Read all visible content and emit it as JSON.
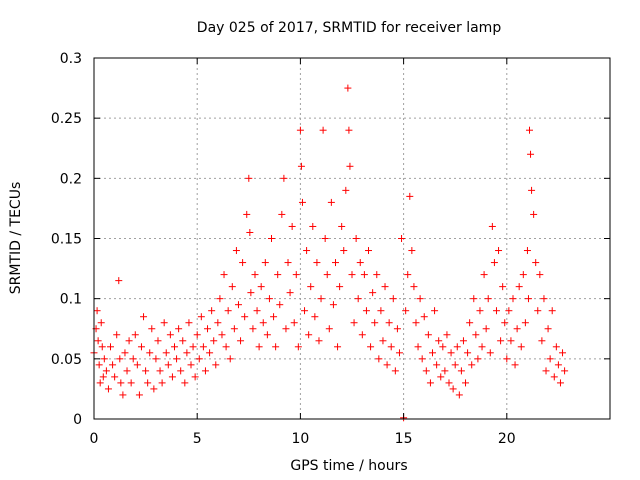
{
  "chart_data": {
    "type": "scatter",
    "title": "Day 025 of 2017, SRMTID for receiver lamp",
    "xlabel": "GPS time / hours",
    "ylabel": "SRMTID / TECUs",
    "xlim": [
      0,
      25
    ],
    "ylim": [
      0,
      0.3
    ],
    "x_ticks": [
      0,
      5,
      10,
      15,
      20
    ],
    "x_tick_labels": [
      "0",
      "5",
      "10",
      "15",
      "20"
    ],
    "y_ticks": [
      0,
      0.05,
      0.1,
      0.15,
      0.2,
      0.25,
      0.3
    ],
    "y_tick_labels": [
      "0",
      "0.05",
      "0.1",
      "0.15",
      "0.2",
      "0.25",
      "0.3"
    ],
    "grid": true,
    "marker": "+",
    "marker_color": "#ff0000",
    "series": [
      {
        "name": "SRMTID",
        "points": [
          [
            0.0,
            0.055
          ],
          [
            0.1,
            0.075
          ],
          [
            0.15,
            0.09
          ],
          [
            0.2,
            0.065
          ],
          [
            0.25,
            0.045
          ],
          [
            0.3,
            0.03
          ],
          [
            0.35,
            0.08
          ],
          [
            0.4,
            0.06
          ],
          [
            0.45,
            0.035
          ],
          [
            0.5,
            0.05
          ],
          [
            0.6,
            0.04
          ],
          [
            0.7,
            0.025
          ],
          [
            0.8,
            0.06
          ],
          [
            0.9,
            0.045
          ],
          [
            1.0,
            0.035
          ],
          [
            1.1,
            0.07
          ],
          [
            1.2,
            0.115
          ],
          [
            1.25,
            0.05
          ],
          [
            1.3,
            0.03
          ],
          [
            1.4,
            0.02
          ],
          [
            1.5,
            0.055
          ],
          [
            1.6,
            0.04
          ],
          [
            1.7,
            0.065
          ],
          [
            1.8,
            0.03
          ],
          [
            1.9,
            0.05
          ],
          [
            2.0,
            0.07
          ],
          [
            2.1,
            0.045
          ],
          [
            2.2,
            0.02
          ],
          [
            2.3,
            0.06
          ],
          [
            2.4,
            0.085
          ],
          [
            2.5,
            0.04
          ],
          [
            2.6,
            0.03
          ],
          [
            2.7,
            0.055
          ],
          [
            2.8,
            0.075
          ],
          [
            2.9,
            0.025
          ],
          [
            3.0,
            0.05
          ],
          [
            3.1,
            0.065
          ],
          [
            3.2,
            0.04
          ],
          [
            3.3,
            0.03
          ],
          [
            3.4,
            0.08
          ],
          [
            3.5,
            0.055
          ],
          [
            3.6,
            0.045
          ],
          [
            3.7,
            0.07
          ],
          [
            3.8,
            0.035
          ],
          [
            3.9,
            0.06
          ],
          [
            4.0,
            0.05
          ],
          [
            4.1,
            0.075
          ],
          [
            4.2,
            0.04
          ],
          [
            4.3,
            0.065
          ],
          [
            4.4,
            0.03
          ],
          [
            4.5,
            0.055
          ],
          [
            4.6,
            0.08
          ],
          [
            4.7,
            0.045
          ],
          [
            4.8,
            0.06
          ],
          [
            4.9,
            0.035
          ],
          [
            5.0,
            0.07
          ],
          [
            5.1,
            0.05
          ],
          [
            5.2,
            0.085
          ],
          [
            5.3,
            0.06
          ],
          [
            5.4,
            0.04
          ],
          [
            5.5,
            0.075
          ],
          [
            5.6,
            0.055
          ],
          [
            5.7,
            0.09
          ],
          [
            5.8,
            0.065
          ],
          [
            5.9,
            0.045
          ],
          [
            6.0,
            0.08
          ],
          [
            6.1,
            0.1
          ],
          [
            6.2,
            0.07
          ],
          [
            6.3,
            0.12
          ],
          [
            6.4,
            0.06
          ],
          [
            6.5,
            0.09
          ],
          [
            6.6,
            0.05
          ],
          [
            6.7,
            0.11
          ],
          [
            6.8,
            0.075
          ],
          [
            6.9,
            0.14
          ],
          [
            7.0,
            0.095
          ],
          [
            7.1,
            0.065
          ],
          [
            7.2,
            0.13
          ],
          [
            7.3,
            0.085
          ],
          [
            7.4,
            0.17
          ],
          [
            7.5,
            0.2
          ],
          [
            7.55,
            0.155
          ],
          [
            7.6,
            0.105
          ],
          [
            7.7,
            0.075
          ],
          [
            7.8,
            0.12
          ],
          [
            7.9,
            0.09
          ],
          [
            8.0,
            0.06
          ],
          [
            8.1,
            0.11
          ],
          [
            8.2,
            0.08
          ],
          [
            8.3,
            0.13
          ],
          [
            8.4,
            0.07
          ],
          [
            8.5,
            0.1
          ],
          [
            8.6,
            0.15
          ],
          [
            8.7,
            0.085
          ],
          [
            8.8,
            0.06
          ],
          [
            8.9,
            0.12
          ],
          [
            9.0,
            0.095
          ],
          [
            9.1,
            0.17
          ],
          [
            9.2,
            0.2
          ],
          [
            9.3,
            0.075
          ],
          [
            9.4,
            0.13
          ],
          [
            9.5,
            0.105
          ],
          [
            9.6,
            0.16
          ],
          [
            9.7,
            0.08
          ],
          [
            9.8,
            0.12
          ],
          [
            9.9,
            0.06
          ],
          [
            10.0,
            0.24
          ],
          [
            10.05,
            0.21
          ],
          [
            10.1,
            0.18
          ],
          [
            10.2,
            0.09
          ],
          [
            10.3,
            0.14
          ],
          [
            10.4,
            0.07
          ],
          [
            10.5,
            0.11
          ],
          [
            10.6,
            0.16
          ],
          [
            10.7,
            0.085
          ],
          [
            10.8,
            0.13
          ],
          [
            10.9,
            0.065
          ],
          [
            11.0,
            0.1
          ],
          [
            11.1,
            0.24
          ],
          [
            11.2,
            0.15
          ],
          [
            11.3,
            0.12
          ],
          [
            11.4,
            0.075
          ],
          [
            11.5,
            0.18
          ],
          [
            11.6,
            0.095
          ],
          [
            11.7,
            0.13
          ],
          [
            11.8,
            0.06
          ],
          [
            11.9,
            0.11
          ],
          [
            12.0,
            0.16
          ],
          [
            12.1,
            0.14
          ],
          [
            12.2,
            0.19
          ],
          [
            12.3,
            0.275
          ],
          [
            12.35,
            0.24
          ],
          [
            12.4,
            0.21
          ],
          [
            12.5,
            0.12
          ],
          [
            12.6,
            0.08
          ],
          [
            12.7,
            0.15
          ],
          [
            12.8,
            0.1
          ],
          [
            12.9,
            0.13
          ],
          [
            13.0,
            0.07
          ],
          [
            13.1,
            0.12
          ],
          [
            13.2,
            0.09
          ],
          [
            13.3,
            0.14
          ],
          [
            13.4,
            0.06
          ],
          [
            13.5,
            0.105
          ],
          [
            13.6,
            0.08
          ],
          [
            13.7,
            0.12
          ],
          [
            13.8,
            0.05
          ],
          [
            13.9,
            0.09
          ],
          [
            14.0,
            0.065
          ],
          [
            14.1,
            0.11
          ],
          [
            14.2,
            0.045
          ],
          [
            14.3,
            0.08
          ],
          [
            14.4,
            0.06
          ],
          [
            14.5,
            0.1
          ],
          [
            14.6,
            0.04
          ],
          [
            14.7,
            0.075
          ],
          [
            14.8,
            0.055
          ],
          [
            14.9,
            0.15
          ],
          [
            15.0,
            0.001
          ],
          [
            15.1,
            0.09
          ],
          [
            15.2,
            0.12
          ],
          [
            15.3,
            0.185
          ],
          [
            15.4,
            0.14
          ],
          [
            15.5,
            0.11
          ],
          [
            15.6,
            0.08
          ],
          [
            15.7,
            0.06
          ],
          [
            15.8,
            0.1
          ],
          [
            15.9,
            0.05
          ],
          [
            16.0,
            0.085
          ],
          [
            16.1,
            0.04
          ],
          [
            16.2,
            0.07
          ],
          [
            16.3,
            0.03
          ],
          [
            16.4,
            0.055
          ],
          [
            16.5,
            0.09
          ],
          [
            16.6,
            0.045
          ],
          [
            16.7,
            0.065
          ],
          [
            16.8,
            0.035
          ],
          [
            16.9,
            0.06
          ],
          [
            17.0,
            0.04
          ],
          [
            17.1,
            0.07
          ],
          [
            17.2,
            0.03
          ],
          [
            17.3,
            0.055
          ],
          [
            17.4,
            0.025
          ],
          [
            17.5,
            0.045
          ],
          [
            17.6,
            0.06
          ],
          [
            17.7,
            0.02
          ],
          [
            17.8,
            0.04
          ],
          [
            17.9,
            0.065
          ],
          [
            18.0,
            0.03
          ],
          [
            18.1,
            0.055
          ],
          [
            18.2,
            0.08
          ],
          [
            18.3,
            0.045
          ],
          [
            18.4,
            0.1
          ],
          [
            18.5,
            0.07
          ],
          [
            18.6,
            0.05
          ],
          [
            18.7,
            0.09
          ],
          [
            18.8,
            0.06
          ],
          [
            18.9,
            0.12
          ],
          [
            19.0,
            0.075
          ],
          [
            19.1,
            0.1
          ],
          [
            19.2,
            0.055
          ],
          [
            19.3,
            0.16
          ],
          [
            19.4,
            0.13
          ],
          [
            19.5,
            0.09
          ],
          [
            19.6,
            0.14
          ],
          [
            19.7,
            0.065
          ],
          [
            19.8,
            0.11
          ],
          [
            19.9,
            0.08
          ],
          [
            20.0,
            0.05
          ],
          [
            20.1,
            0.09
          ],
          [
            20.2,
            0.065
          ],
          [
            20.3,
            0.1
          ],
          [
            20.4,
            0.045
          ],
          [
            20.5,
            0.075
          ],
          [
            20.6,
            0.11
          ],
          [
            20.7,
            0.06
          ],
          [
            20.8,
            0.12
          ],
          [
            20.9,
            0.08
          ],
          [
            21.0,
            0.14
          ],
          [
            21.05,
            0.1
          ],
          [
            21.1,
            0.24
          ],
          [
            21.15,
            0.22
          ],
          [
            21.2,
            0.19
          ],
          [
            21.3,
            0.17
          ],
          [
            21.4,
            0.13
          ],
          [
            21.5,
            0.09
          ],
          [
            21.6,
            0.12
          ],
          [
            21.7,
            0.065
          ],
          [
            21.8,
            0.1
          ],
          [
            21.9,
            0.04
          ],
          [
            22.0,
            0.075
          ],
          [
            22.1,
            0.05
          ],
          [
            22.2,
            0.09
          ],
          [
            22.3,
            0.035
          ],
          [
            22.4,
            0.06
          ],
          [
            22.5,
            0.045
          ],
          [
            22.6,
            0.03
          ],
          [
            22.7,
            0.055
          ],
          [
            22.8,
            0.04
          ]
        ]
      }
    ]
  }
}
